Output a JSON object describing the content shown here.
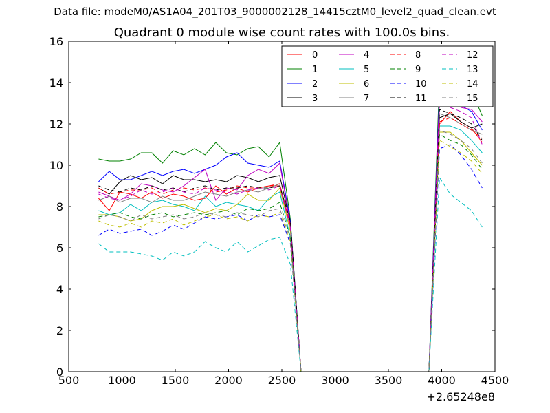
{
  "suptitle": "Data file: modeM0/AS1A04_201T03_9000002128_14415cztM0_level2_quad_clean.evt",
  "chart_data": {
    "type": "line",
    "title": "Quadrant 0 module wise count rates with 100.0s bins.",
    "xlabel": "",
    "ylabel": "",
    "x_offset_label": "+2.65248e8",
    "xlim": [
      500,
      4500
    ],
    "ylim": [
      0,
      16
    ],
    "xticks": [
      500,
      1000,
      1500,
      2000,
      2500,
      3000,
      3500,
      4000,
      4500
    ],
    "yticks": [
      0,
      2,
      4,
      6,
      8,
      10,
      12,
      14,
      16
    ],
    "grid": false,
    "legend_position": "top-right",
    "legend_columns": 4,
    "x": [
      780,
      880,
      980,
      1080,
      1180,
      1280,
      1380,
      1480,
      1580,
      1680,
      1780,
      1880,
      1980,
      2080,
      2180,
      2280,
      2380,
      2480,
      2580,
      2680,
      3880,
      3980,
      4080,
      4180,
      4280,
      4380
    ],
    "series": [
      {
        "name": "0",
        "color": "#ff0000",
        "dash": "solid",
        "values": [
          8.4,
          7.8,
          8.7,
          8.6,
          8.4,
          8.7,
          8.4,
          8.6,
          8.5,
          8.3,
          8.4,
          9.0,
          8.6,
          8.9,
          8.7,
          8.9,
          9.0,
          9.0,
          7.0,
          0,
          0,
          12.0,
          12.6,
          12.1,
          11.8,
          11.1
        ]
      },
      {
        "name": "1",
        "color": "#008000",
        "dash": "solid",
        "values": [
          10.3,
          10.2,
          10.2,
          10.3,
          10.6,
          10.6,
          10.1,
          10.7,
          10.5,
          10.8,
          10.5,
          11.1,
          10.6,
          10.5,
          10.8,
          10.9,
          10.4,
          11.1,
          7.4,
          0,
          0,
          14.3,
          14.2,
          14.0,
          13.6,
          12.4
        ]
      },
      {
        "name": "2",
        "color": "#0000ff",
        "dash": "solid",
        "values": [
          9.2,
          9.7,
          9.3,
          9.3,
          9.5,
          9.7,
          9.5,
          9.7,
          9.8,
          9.6,
          9.8,
          10.0,
          10.4,
          10.6,
          10.1,
          10.0,
          9.9,
          10.2,
          7.3,
          0,
          0,
          13.7,
          13.7,
          12.9,
          12.6,
          11.7
        ]
      },
      {
        "name": "3",
        "color": "#000000",
        "dash": "solid",
        "values": [
          8.9,
          8.6,
          9.2,
          9.5,
          9.3,
          9.4,
          9.1,
          9.5,
          9.3,
          9.3,
          9.2,
          9.3,
          9.2,
          9.5,
          9.4,
          9.2,
          9.4,
          9.5,
          7.2,
          0,
          0,
          12.3,
          12.5,
          12.1,
          11.8,
          12.0
        ]
      },
      {
        "name": "4",
        "color": "#c000c0",
        "dash": "solid",
        "values": [
          8.7,
          8.5,
          8.3,
          8.6,
          9.1,
          9.0,
          8.8,
          8.7,
          9.0,
          9.4,
          9.8,
          8.3,
          8.9,
          8.8,
          9.5,
          9.8,
          9.6,
          10.1,
          7.1,
          0,
          0,
          13.4,
          13.3,
          12.8,
          12.7,
          12.1
        ]
      },
      {
        "name": "5",
        "color": "#00bfbf",
        "dash": "solid",
        "values": [
          7.8,
          7.6,
          7.7,
          8.1,
          7.8,
          8.2,
          8.3,
          8.1,
          8.0,
          7.8,
          8.5,
          8.0,
          8.2,
          8.1,
          8.0,
          7.8,
          8.4,
          8.7,
          6.5,
          0,
          0,
          11.9,
          11.9,
          11.7,
          11.2,
          10.6
        ]
      },
      {
        "name": "6",
        "color": "#bfbf00",
        "dash": "solid",
        "values": [
          7.6,
          7.6,
          7.5,
          7.3,
          7.4,
          7.8,
          8.0,
          8.0,
          8.1,
          7.9,
          7.7,
          7.9,
          7.8,
          8.1,
          8.6,
          8.3,
          8.3,
          8.9,
          6.8,
          0,
          0,
          11.6,
          11.6,
          11.2,
          10.6,
          10.0
        ]
      },
      {
        "name": "7",
        "color": "#808080",
        "dash": "solid",
        "values": [
          8.3,
          8.5,
          8.2,
          8.4,
          8.4,
          8.2,
          8.5,
          8.3,
          8.3,
          8.5,
          8.7,
          8.6,
          8.5,
          8.7,
          8.8,
          8.7,
          8.9,
          9.1,
          7.0,
          0,
          0,
          12.5,
          12.3,
          12.0,
          11.7,
          11.5
        ]
      },
      {
        "name": "8",
        "color": "#ff0000",
        "dash": "dashed",
        "values": [
          8.9,
          8.6,
          8.7,
          8.8,
          8.8,
          8.9,
          8.6,
          8.8,
          8.9,
          8.8,
          8.9,
          8.7,
          8.8,
          9.0,
          8.9,
          8.9,
          9.0,
          9.1,
          7.1,
          0,
          0,
          12.1,
          12.3,
          12.0,
          11.7,
          11.3
        ]
      },
      {
        "name": "9",
        "color": "#008000",
        "dash": "dashed",
        "values": [
          7.5,
          7.6,
          7.7,
          7.5,
          7.4,
          7.6,
          7.7,
          7.5,
          7.6,
          7.7,
          7.6,
          7.7,
          7.8,
          7.6,
          7.9,
          7.8,
          7.9,
          8.2,
          6.5,
          0,
          0,
          11.5,
          11.2,
          11.0,
          10.5,
          9.8
        ]
      },
      {
        "name": "10",
        "color": "#0000ff",
        "dash": "dashed",
        "values": [
          6.6,
          6.9,
          6.7,
          6.8,
          6.9,
          6.6,
          6.8,
          7.1,
          6.9,
          7.2,
          7.5,
          7.4,
          7.5,
          7.6,
          7.3,
          7.6,
          7.5,
          7.6,
          6.2,
          0,
          0,
          10.8,
          11.0,
          10.5,
          9.8,
          8.9
        ]
      },
      {
        "name": "11",
        "color": "#000000",
        "dash": "dashed",
        "values": [
          9.0,
          8.8,
          8.7,
          8.9,
          8.8,
          9.0,
          8.8,
          8.9,
          8.7,
          8.9,
          9.0,
          8.8,
          8.9,
          8.9,
          9.0,
          8.9,
          8.9,
          9.0,
          7.3,
          0,
          0,
          12.7,
          12.5,
          12.3,
          12.0,
          11.2
        ]
      },
      {
        "name": "12",
        "color": "#c000c0",
        "dash": "dashed",
        "values": [
          8.6,
          8.4,
          8.3,
          8.5,
          8.8,
          8.6,
          8.7,
          8.9,
          8.7,
          8.6,
          8.9,
          8.8,
          8.7,
          8.6,
          8.8,
          8.9,
          8.8,
          9.0,
          7.0,
          0,
          0,
          12.9,
          12.8,
          12.6,
          12.3,
          11.0
        ]
      },
      {
        "name": "13",
        "color": "#00bfbf",
        "dash": "dashed",
        "values": [
          6.2,
          5.8,
          5.8,
          5.8,
          5.7,
          5.6,
          5.4,
          5.8,
          5.6,
          5.8,
          6.3,
          6.0,
          5.8,
          6.3,
          5.8,
          6.1,
          6.4,
          6.5,
          5.2,
          0,
          0,
          9.4,
          8.6,
          8.2,
          7.8,
          7.0
        ]
      },
      {
        "name": "14",
        "color": "#bfbf00",
        "dash": "dashed",
        "values": [
          7.3,
          7.1,
          7.0,
          7.2,
          7.0,
          7.3,
          7.2,
          7.4,
          7.1,
          7.3,
          7.5,
          7.6,
          7.4,
          7.5,
          7.3,
          7.6,
          7.5,
          7.7,
          6.3,
          0,
          0,
          11.2,
          10.9,
          10.6,
          10.2,
          9.6
        ]
      },
      {
        "name": "15",
        "color": "#808080",
        "dash": "dashed",
        "values": [
          7.4,
          7.6,
          7.5,
          7.3,
          7.6,
          7.4,
          7.5,
          7.6,
          7.4,
          7.5,
          7.7,
          7.6,
          7.5,
          7.7,
          7.6,
          7.5,
          7.8,
          7.9,
          6.4,
          0,
          0,
          11.7,
          11.5,
          11.2,
          10.8,
          10.1
        ]
      }
    ]
  }
}
